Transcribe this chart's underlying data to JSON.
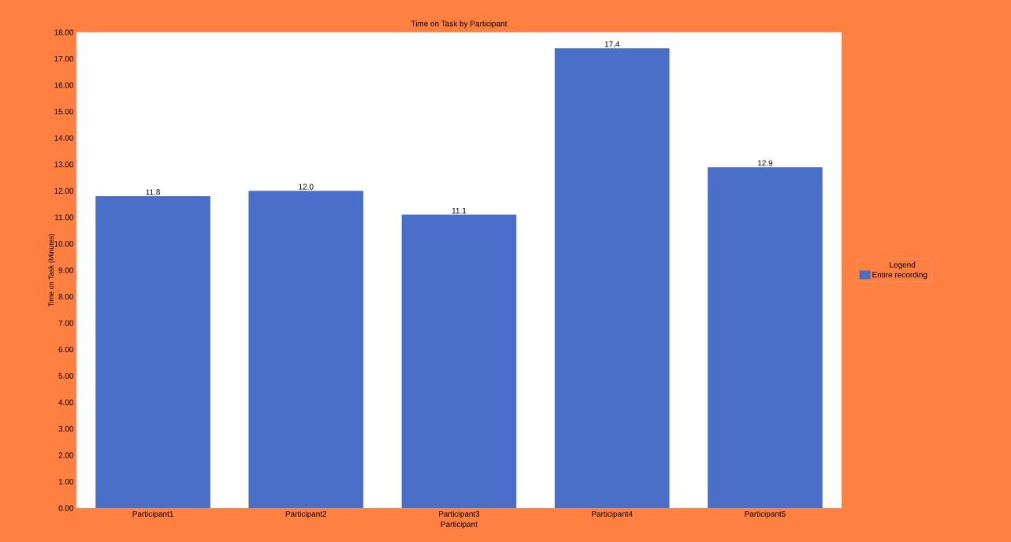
{
  "chart_data": {
    "type": "bar",
    "title": "Time on Task by Participant",
    "xlabel": "Participant",
    "ylabel": "Time on Task (Minutes)",
    "legend_title": "Legend",
    "categories": [
      "Participant1",
      "Participant2",
      "Participant3",
      "Participant4",
      "Participant5"
    ],
    "series": [
      {
        "name": "Entire recording",
        "color": "#4a6fc8",
        "values": [
          11.8,
          12.0,
          11.1,
          17.4,
          12.9
        ],
        "value_labels": [
          "11.8",
          "12.0",
          "11.1",
          "17.4",
          "12.9"
        ]
      }
    ],
    "ylim": [
      0,
      18
    ],
    "yticks": [
      {
        "value": 0,
        "label": "0.00"
      },
      {
        "value": 1,
        "label": "1.00"
      },
      {
        "value": 2,
        "label": "2.00"
      },
      {
        "value": 3,
        "label": "3.00"
      },
      {
        "value": 4,
        "label": "4.00"
      },
      {
        "value": 5,
        "label": "5.00"
      },
      {
        "value": 6,
        "label": "6.00"
      },
      {
        "value": 7,
        "label": "7.00"
      },
      {
        "value": 8,
        "label": "8.00"
      },
      {
        "value": 9,
        "label": "9.00"
      },
      {
        "value": 10,
        "label": "10.00"
      },
      {
        "value": 11,
        "label": "11.00"
      },
      {
        "value": 12,
        "label": "12.00"
      },
      {
        "value": 13,
        "label": "13.00"
      },
      {
        "value": 14,
        "label": "14.00"
      },
      {
        "value": 15,
        "label": "15.00"
      },
      {
        "value": 16,
        "label": "16.00"
      },
      {
        "value": 17,
        "label": "17.00"
      },
      {
        "value": 18,
        "label": "18.00"
      }
    ],
    "grid": false,
    "legend": "right"
  }
}
